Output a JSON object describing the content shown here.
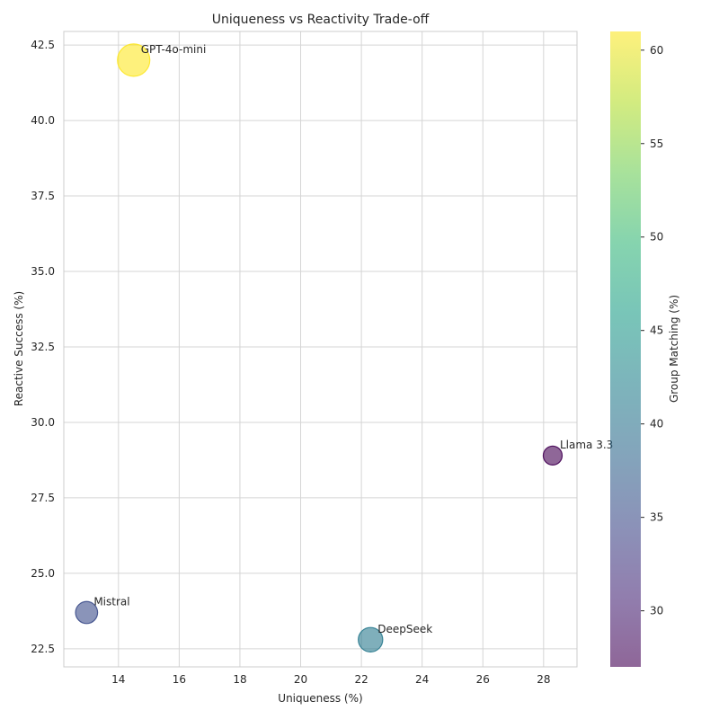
{
  "chart_data": {
    "type": "scatter",
    "title": "Uniqueness vs Reactivity Trade-off",
    "xlabel": "Uniqueness (%)",
    "ylabel": "Reactive Success (%)",
    "xlim": [
      12.2,
      29.1
    ],
    "ylim": [
      21.9,
      42.95
    ],
    "xticks": [
      14,
      16,
      18,
      20,
      22,
      24,
      26,
      28
    ],
    "yticks": [
      22.5,
      25.0,
      27.5,
      30.0,
      32.5,
      35.0,
      37.5,
      40.0,
      42.5
    ],
    "xtick_labels": [
      "14",
      "16",
      "18",
      "20",
      "22",
      "24",
      "26",
      "28"
    ],
    "ytick_labels": [
      "22.5",
      "25.0",
      "27.5",
      "30.0",
      "32.5",
      "35.0",
      "37.5",
      "40.0",
      "42.5"
    ],
    "grid": true,
    "points": [
      {
        "label": "GPT-4o-mini",
        "x": 14.5,
        "y": 42.0,
        "c": 61.0
      },
      {
        "label": "Llama 3.3",
        "x": 28.3,
        "y": 28.9,
        "c": 27.0
      },
      {
        "label": "Mistral",
        "x": 12.95,
        "y": 23.7,
        "c": 35.0
      },
      {
        "label": "DeepSeek",
        "x": 22.3,
        "y": 22.8,
        "c": 41.0
      }
    ],
    "colorbar": {
      "label": "Group Matching (%)",
      "range": [
        27.0,
        61.0
      ],
      "ticks": [
        30,
        35,
        40,
        45,
        50,
        55,
        60
      ],
      "tick_labels": [
        "30",
        "35",
        "40",
        "45",
        "50",
        "55",
        "60"
      ],
      "colormap": [
        "#440154",
        "#482878",
        "#3e4989",
        "#31688e",
        "#26828e",
        "#1f9e89",
        "#35b779",
        "#6ece58",
        "#b5de2b",
        "#fde725"
      ]
    }
  }
}
